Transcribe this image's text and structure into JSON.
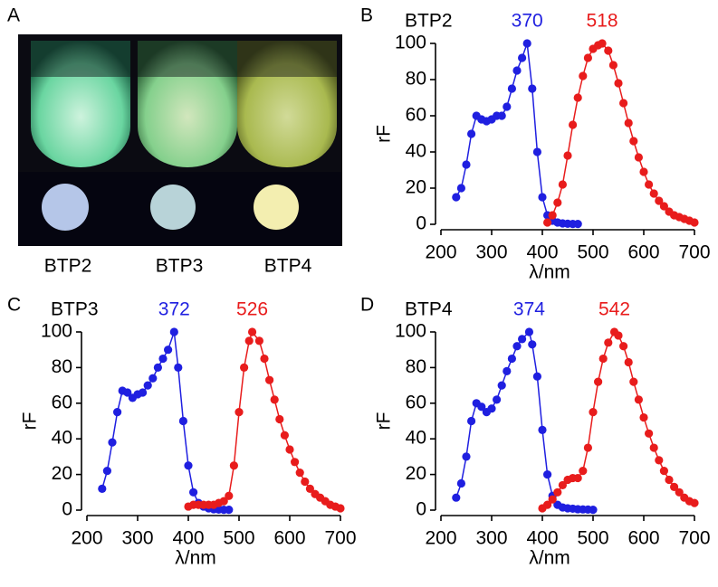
{
  "photo": {
    "panel_label": "A",
    "captions": [
      "BTP2",
      "BTP3",
      "BTP4"
    ]
  },
  "chart_data": [
    {
      "panel_label": "B",
      "type": "line",
      "title": "BTP2",
      "annotations": [
        {
          "text": "370",
          "color": "#1f1fe0"
        },
        {
          "text": "518",
          "color": "#e81c1c"
        }
      ],
      "xlabel": "λ/nm",
      "ylabel": "rF",
      "xlim": [
        200,
        700
      ],
      "ylim": [
        0,
        100
      ],
      "xticks": [
        200,
        300,
        400,
        500,
        600,
        700
      ],
      "yticks": [
        0,
        20,
        40,
        60,
        80,
        100
      ],
      "series": [
        {
          "color": "#1f1fe0",
          "x": [
            230,
            240,
            250,
            260,
            270,
            280,
            290,
            300,
            310,
            320,
            330,
            340,
            350,
            360,
            370,
            380,
            390,
            400,
            410,
            420,
            430,
            440,
            450,
            460,
            470
          ],
          "values": [
            15,
            20,
            33,
            50,
            60,
            58,
            57,
            58,
            60,
            60,
            65,
            75,
            85,
            92,
            100,
            75,
            40,
            15,
            5,
            2,
            1,
            0.5,
            0.3,
            0.2,
            0.2
          ]
        },
        {
          "color": "#e81c1c",
          "x": [
            410,
            420,
            430,
            440,
            450,
            460,
            470,
            480,
            490,
            500,
            510,
            518,
            530,
            540,
            550,
            560,
            570,
            580,
            590,
            600,
            610,
            620,
            630,
            640,
            650,
            660,
            670,
            680,
            690,
            700
          ],
          "values": [
            1,
            5,
            12,
            22,
            38,
            55,
            70,
            82,
            92,
            97,
            99,
            100,
            96,
            88,
            78,
            67,
            56,
            46,
            37,
            29,
            22,
            17,
            13,
            10,
            7,
            5,
            4,
            3,
            2,
            1
          ]
        }
      ]
    },
    {
      "panel_label": "C",
      "type": "line",
      "title": "BTP3",
      "annotations": [
        {
          "text": "372",
          "color": "#1f1fe0"
        },
        {
          "text": "526",
          "color": "#e81c1c"
        }
      ],
      "xlabel": "λ/nm",
      "ylabel": "rF",
      "xlim": [
        200,
        700
      ],
      "ylim": [
        0,
        100
      ],
      "xticks": [
        200,
        300,
        400,
        500,
        600,
        700
      ],
      "yticks": [
        0,
        20,
        40,
        60,
        80,
        100
      ],
      "series": [
        {
          "color": "#1f1fe0",
          "x": [
            230,
            240,
            250,
            260,
            270,
            280,
            290,
            300,
            310,
            320,
            330,
            340,
            350,
            360,
            372,
            380,
            390,
            400,
            410,
            420,
            430,
            440,
            450,
            460,
            470,
            480
          ],
          "values": [
            12,
            22,
            38,
            55,
            67,
            66,
            63,
            65,
            66,
            70,
            74,
            80,
            85,
            90,
            100,
            80,
            50,
            25,
            10,
            4,
            2,
            1,
            0.5,
            0.3,
            0.2,
            0.2
          ]
        },
        {
          "color": "#e81c1c",
          "x": [
            400,
            410,
            420,
            430,
            440,
            450,
            460,
            470,
            480,
            490,
            500,
            510,
            520,
            526,
            540,
            550,
            560,
            570,
            580,
            590,
            600,
            610,
            620,
            630,
            640,
            650,
            660,
            670,
            680,
            690,
            700
          ],
          "values": [
            2,
            3,
            3,
            3,
            3,
            3,
            4,
            5,
            8,
            25,
            55,
            80,
            95,
            100,
            95,
            85,
            73,
            62,
            51,
            42,
            34,
            27,
            21,
            16,
            12,
            9,
            7,
            5,
            3,
            2,
            1
          ]
        }
      ]
    },
    {
      "panel_label": "D",
      "type": "line",
      "title": "BTP4",
      "annotations": [
        {
          "text": "374",
          "color": "#1f1fe0"
        },
        {
          "text": "542",
          "color": "#e81c1c"
        }
      ],
      "xlabel": "λ/nm",
      "ylabel": "rF",
      "xlim": [
        200,
        700
      ],
      "ylim": [
        0,
        100
      ],
      "xticks": [
        200,
        300,
        400,
        500,
        600,
        700
      ],
      "yticks": [
        0,
        20,
        40,
        60,
        80,
        100
      ],
      "series": [
        {
          "color": "#1f1fe0",
          "x": [
            230,
            240,
            250,
            260,
            270,
            280,
            290,
            300,
            310,
            320,
            330,
            340,
            350,
            360,
            374,
            380,
            390,
            400,
            410,
            420,
            430,
            440,
            450,
            460,
            470,
            480,
            490,
            500
          ],
          "values": [
            7,
            15,
            30,
            50,
            60,
            58,
            55,
            57,
            62,
            70,
            78,
            85,
            92,
            96,
            100,
            93,
            75,
            45,
            20,
            8,
            3,
            1.5,
            1,
            0.8,
            0.5,
            0.4,
            0.3,
            0.2
          ]
        },
        {
          "color": "#e81c1c",
          "x": [
            400,
            410,
            420,
            430,
            440,
            450,
            460,
            470,
            480,
            490,
            500,
            510,
            520,
            530,
            542,
            550,
            560,
            570,
            580,
            590,
            600,
            610,
            620,
            630,
            640,
            650,
            660,
            670,
            680,
            690,
            700
          ],
          "values": [
            1,
            3,
            6,
            10,
            14,
            17,
            18,
            18,
            22,
            35,
            55,
            72,
            85,
            94,
            100,
            98,
            92,
            83,
            72,
            62,
            52,
            43,
            35,
            28,
            22,
            17,
            13,
            10,
            7,
            5,
            4
          ]
        }
      ]
    }
  ]
}
